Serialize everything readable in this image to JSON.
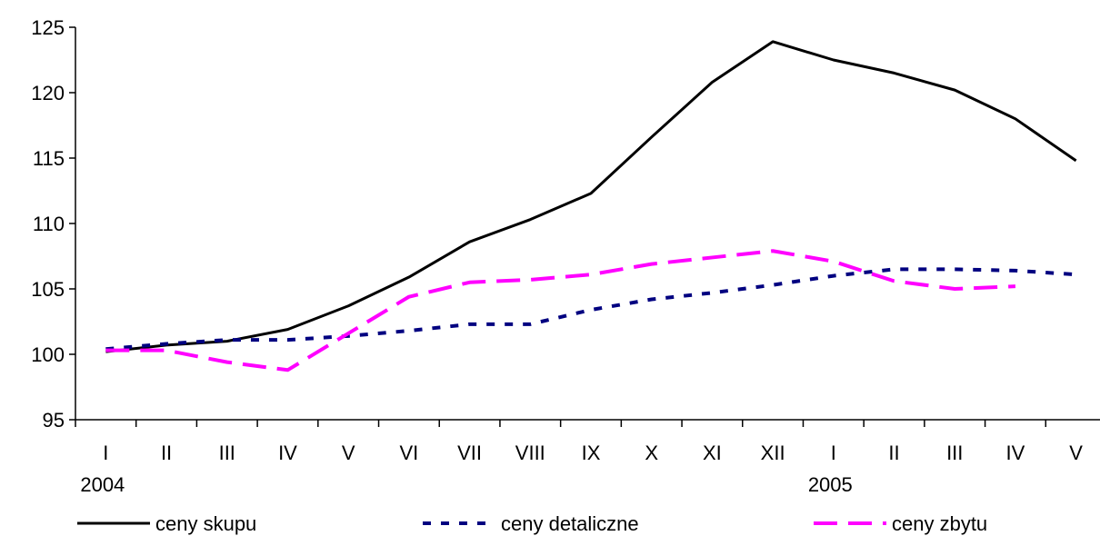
{
  "chart_data": {
    "type": "line",
    "categories": [
      "I",
      "II",
      "III",
      "IV",
      "V",
      "VI",
      "VII",
      "VIII",
      "IX",
      "X",
      "XI",
      "XII",
      "I",
      "II",
      "III",
      "IV",
      "V"
    ],
    "year_labels": [
      {
        "index": 0,
        "label": "2004"
      },
      {
        "index": 12,
        "label": "2005"
      }
    ],
    "ylim": [
      95,
      125
    ],
    "yticks": [
      95,
      100,
      105,
      110,
      115,
      120,
      125
    ],
    "grid": false,
    "legend_position": "bottom",
    "series": [
      {
        "name": "ceny skupu",
        "color": "#000000",
        "style": "solid",
        "values": [
          100.2,
          100.7,
          101.0,
          101.9,
          103.7,
          105.9,
          108.6,
          110.3,
          112.3,
          116.6,
          120.8,
          123.9,
          122.5,
          121.5,
          120.2,
          118.0,
          114.8
        ]
      },
      {
        "name": "ceny detaliczne",
        "color": "#000080",
        "style": "dotted",
        "values": [
          100.4,
          100.8,
          101.1,
          101.1,
          101.4,
          101.8,
          102.3,
          102.3,
          103.4,
          104.2,
          104.7,
          105.3,
          106.0,
          106.5,
          106.5,
          106.4,
          106.1
        ]
      },
      {
        "name": "ceny zbytu",
        "color": "#ff00ff",
        "style": "dashed",
        "values": [
          100.3,
          100.3,
          99.4,
          98.8,
          101.6,
          104.4,
          105.5,
          105.7,
          106.1,
          106.9,
          107.4,
          107.9,
          107.1,
          105.6,
          105.0,
          105.2,
          null
        ]
      }
    ]
  }
}
